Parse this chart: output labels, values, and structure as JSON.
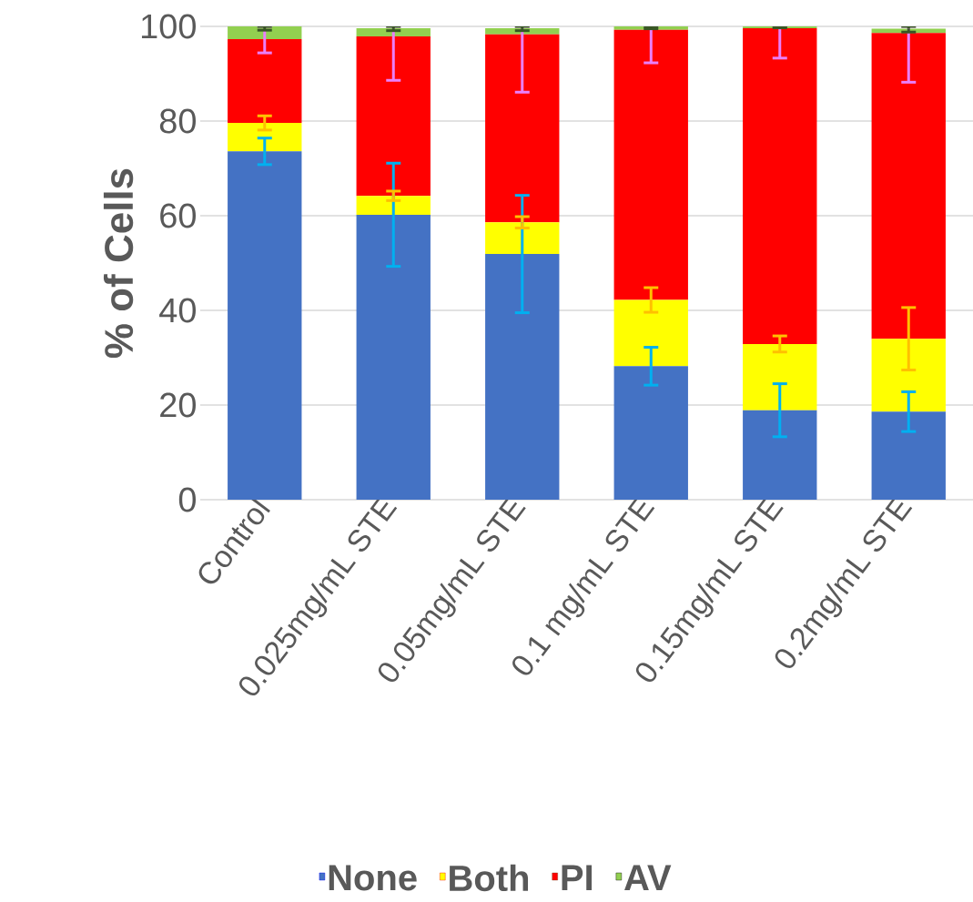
{
  "chart_data": {
    "type": "bar",
    "stacked": true,
    "ylabel": "% of Cells",
    "categories": [
      "Control",
      "0.025mg/mL STE",
      "0.05mg/mL STE",
      "0.1 mg/mL STE",
      "0.15mg/mL STE",
      "0.2mg/mL STE"
    ],
    "series": [
      {
        "name": "None",
        "color": "#4472c4",
        "values": [
          73.6,
          60.2,
          51.9,
          28.2,
          18.9,
          18.6
        ],
        "errors": [
          2.8,
          10.9,
          12.4,
          4.0,
          5.6,
          4.2
        ]
      },
      {
        "name": "Both",
        "color": "#ffff00",
        "values": [
          6.0,
          4.0,
          6.7,
          14.0,
          14.0,
          15.4
        ],
        "errors": [
          1.5,
          1.0,
          1.2,
          2.6,
          1.7,
          6.6
        ]
      },
      {
        "name": "PI",
        "color": "#ff0000",
        "values": [
          17.7,
          33.7,
          39.7,
          57.1,
          66.7,
          64.6
        ],
        "errors": [
          [
            94.4,
            100
          ],
          [
            88.6,
            100
          ],
          [
            86.1,
            100
          ],
          [
            92.3,
            100
          ],
          [
            93.3,
            100
          ],
          [
            88.2,
            100
          ]
        ]
      },
      {
        "name": "AV",
        "color": "#92d050",
        "values": [
          2.7,
          1.7,
          1.3,
          0.7,
          0.4,
          0.9
        ],
        "errors": [
          [
            99.2,
            100
          ],
          [
            99.1,
            100
          ],
          [
            99.1,
            100
          ],
          [
            99.5,
            100
          ],
          [
            99.7,
            100
          ],
          [
            98.8,
            100
          ]
        ]
      }
    ],
    "ylim": [
      0,
      100
    ],
    "yticks": [
      0,
      20,
      40,
      60,
      80,
      100
    ],
    "grid": "y",
    "legend": "bottom"
  }
}
